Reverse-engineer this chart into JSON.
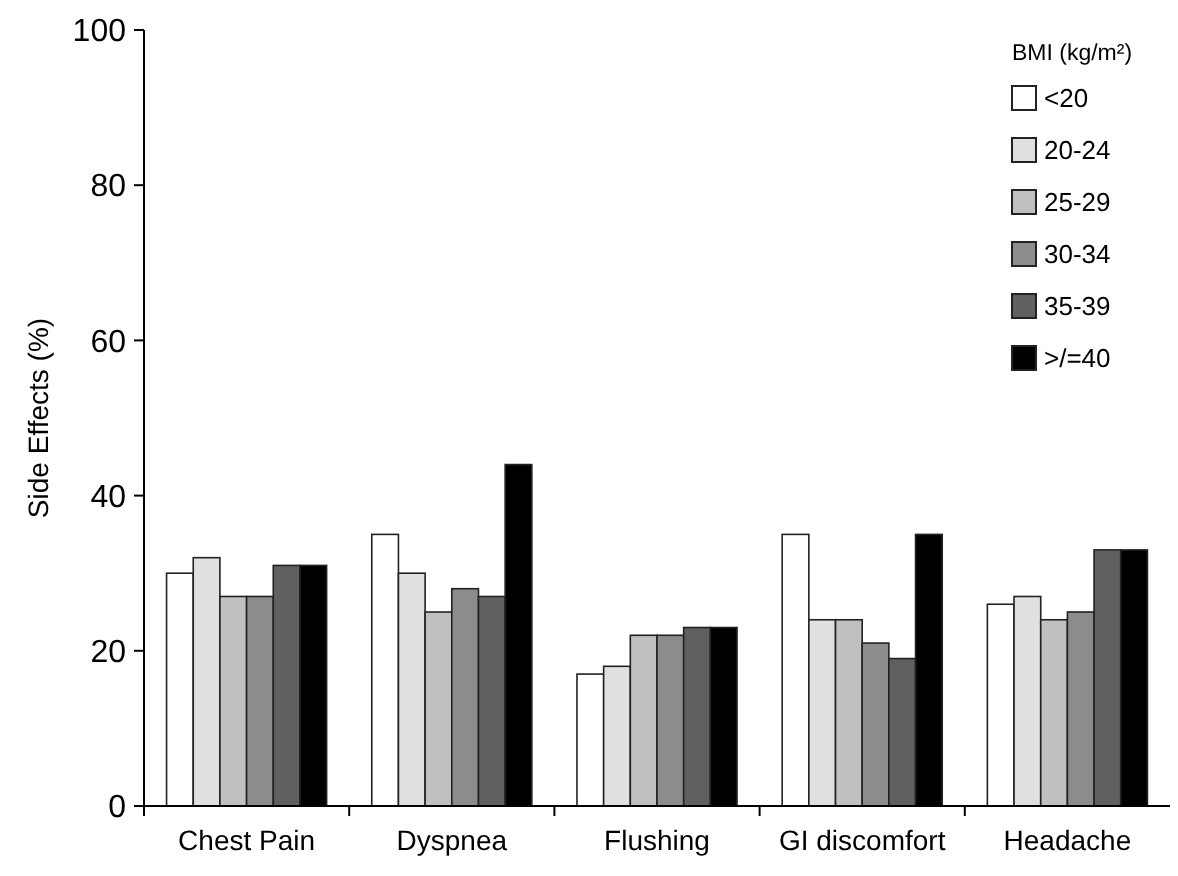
{
  "chart_data": {
    "type": "bar",
    "ylabel": "Side Effects (%)",
    "legend_title": "BMI (kg/m²)",
    "categories": [
      "Chest Pain",
      "Dyspnea",
      "Flushing",
      "GI discomfort",
      "Headache"
    ],
    "series": [
      {
        "name": "<20",
        "color": "#ffffff",
        "values": [
          30,
          35,
          17,
          35,
          26
        ]
      },
      {
        "name": "20-24",
        "color": "#e0e0e0",
        "values": [
          32,
          30,
          18,
          24,
          27
        ]
      },
      {
        "name": "25-29",
        "color": "#c0c0c0",
        "values": [
          27,
          25,
          22,
          24,
          24
        ]
      },
      {
        "name": "30-34",
        "color": "#8c8c8c",
        "values": [
          27,
          28,
          22,
          21,
          25
        ]
      },
      {
        "name": "35-39",
        "color": "#606060",
        "values": [
          31,
          27,
          23,
          19,
          33
        ]
      },
      {
        "name": ">/=40",
        "color": "#000000",
        "values": [
          31,
          44,
          23,
          35,
          33
        ]
      }
    ],
    "ylim": [
      0,
      100
    ],
    "yticks": [
      0,
      20,
      40,
      60,
      80,
      100
    ],
    "grid": false,
    "legend": "top right"
  }
}
